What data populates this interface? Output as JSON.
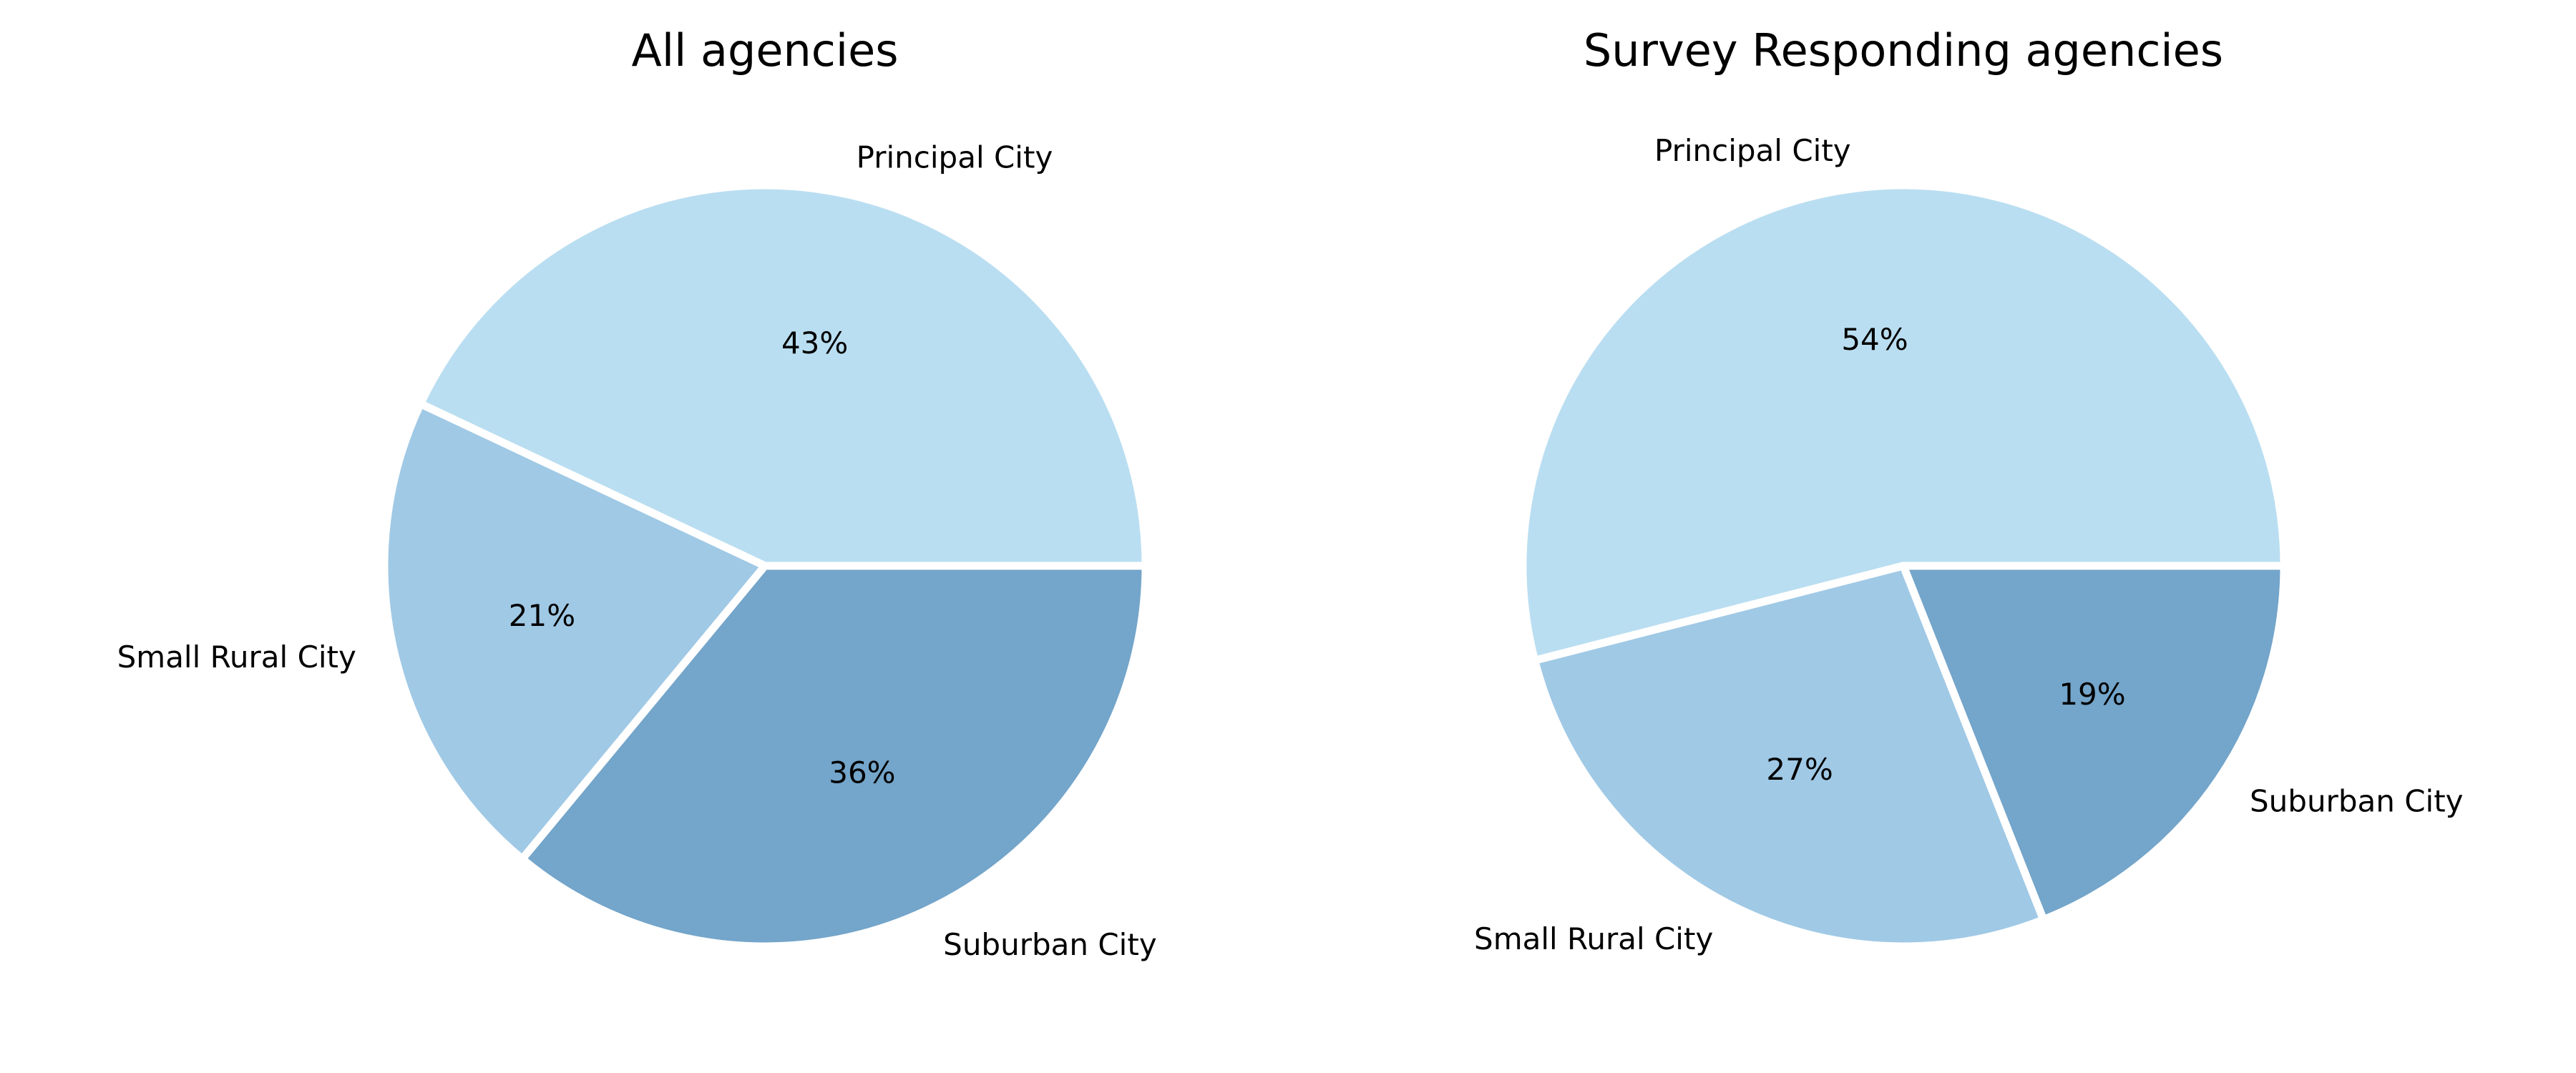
{
  "chart_data": [
    {
      "type": "pie",
      "title": "All agencies",
      "categories": [
        "Principal City",
        "Small Rural City",
        "Suburban City"
      ],
      "values": [
        43,
        21,
        36
      ],
      "value_labels": [
        "43%",
        "21%",
        "36%"
      ],
      "colors": [
        "#badef1",
        "#a0c9e5",
        "#74a5ca"
      ],
      "slice_edge_color": "#ffffff",
      "start_angle_deg": 0,
      "direction": "counterclockwise",
      "legend": "none"
    },
    {
      "type": "pie",
      "title": "Survey Responding agencies",
      "categories": [
        "Principal City",
        "Small Rural City",
        "Suburban City"
      ],
      "values": [
        54,
        27,
        19
      ],
      "value_labels": [
        "54%",
        "27%",
        "19%"
      ],
      "colors": [
        "#badef1",
        "#a0c9e5",
        "#74a5ca"
      ],
      "slice_edge_color": "#ffffff",
      "start_angle_deg": 0,
      "direction": "counterclockwise",
      "legend": "none"
    }
  ]
}
